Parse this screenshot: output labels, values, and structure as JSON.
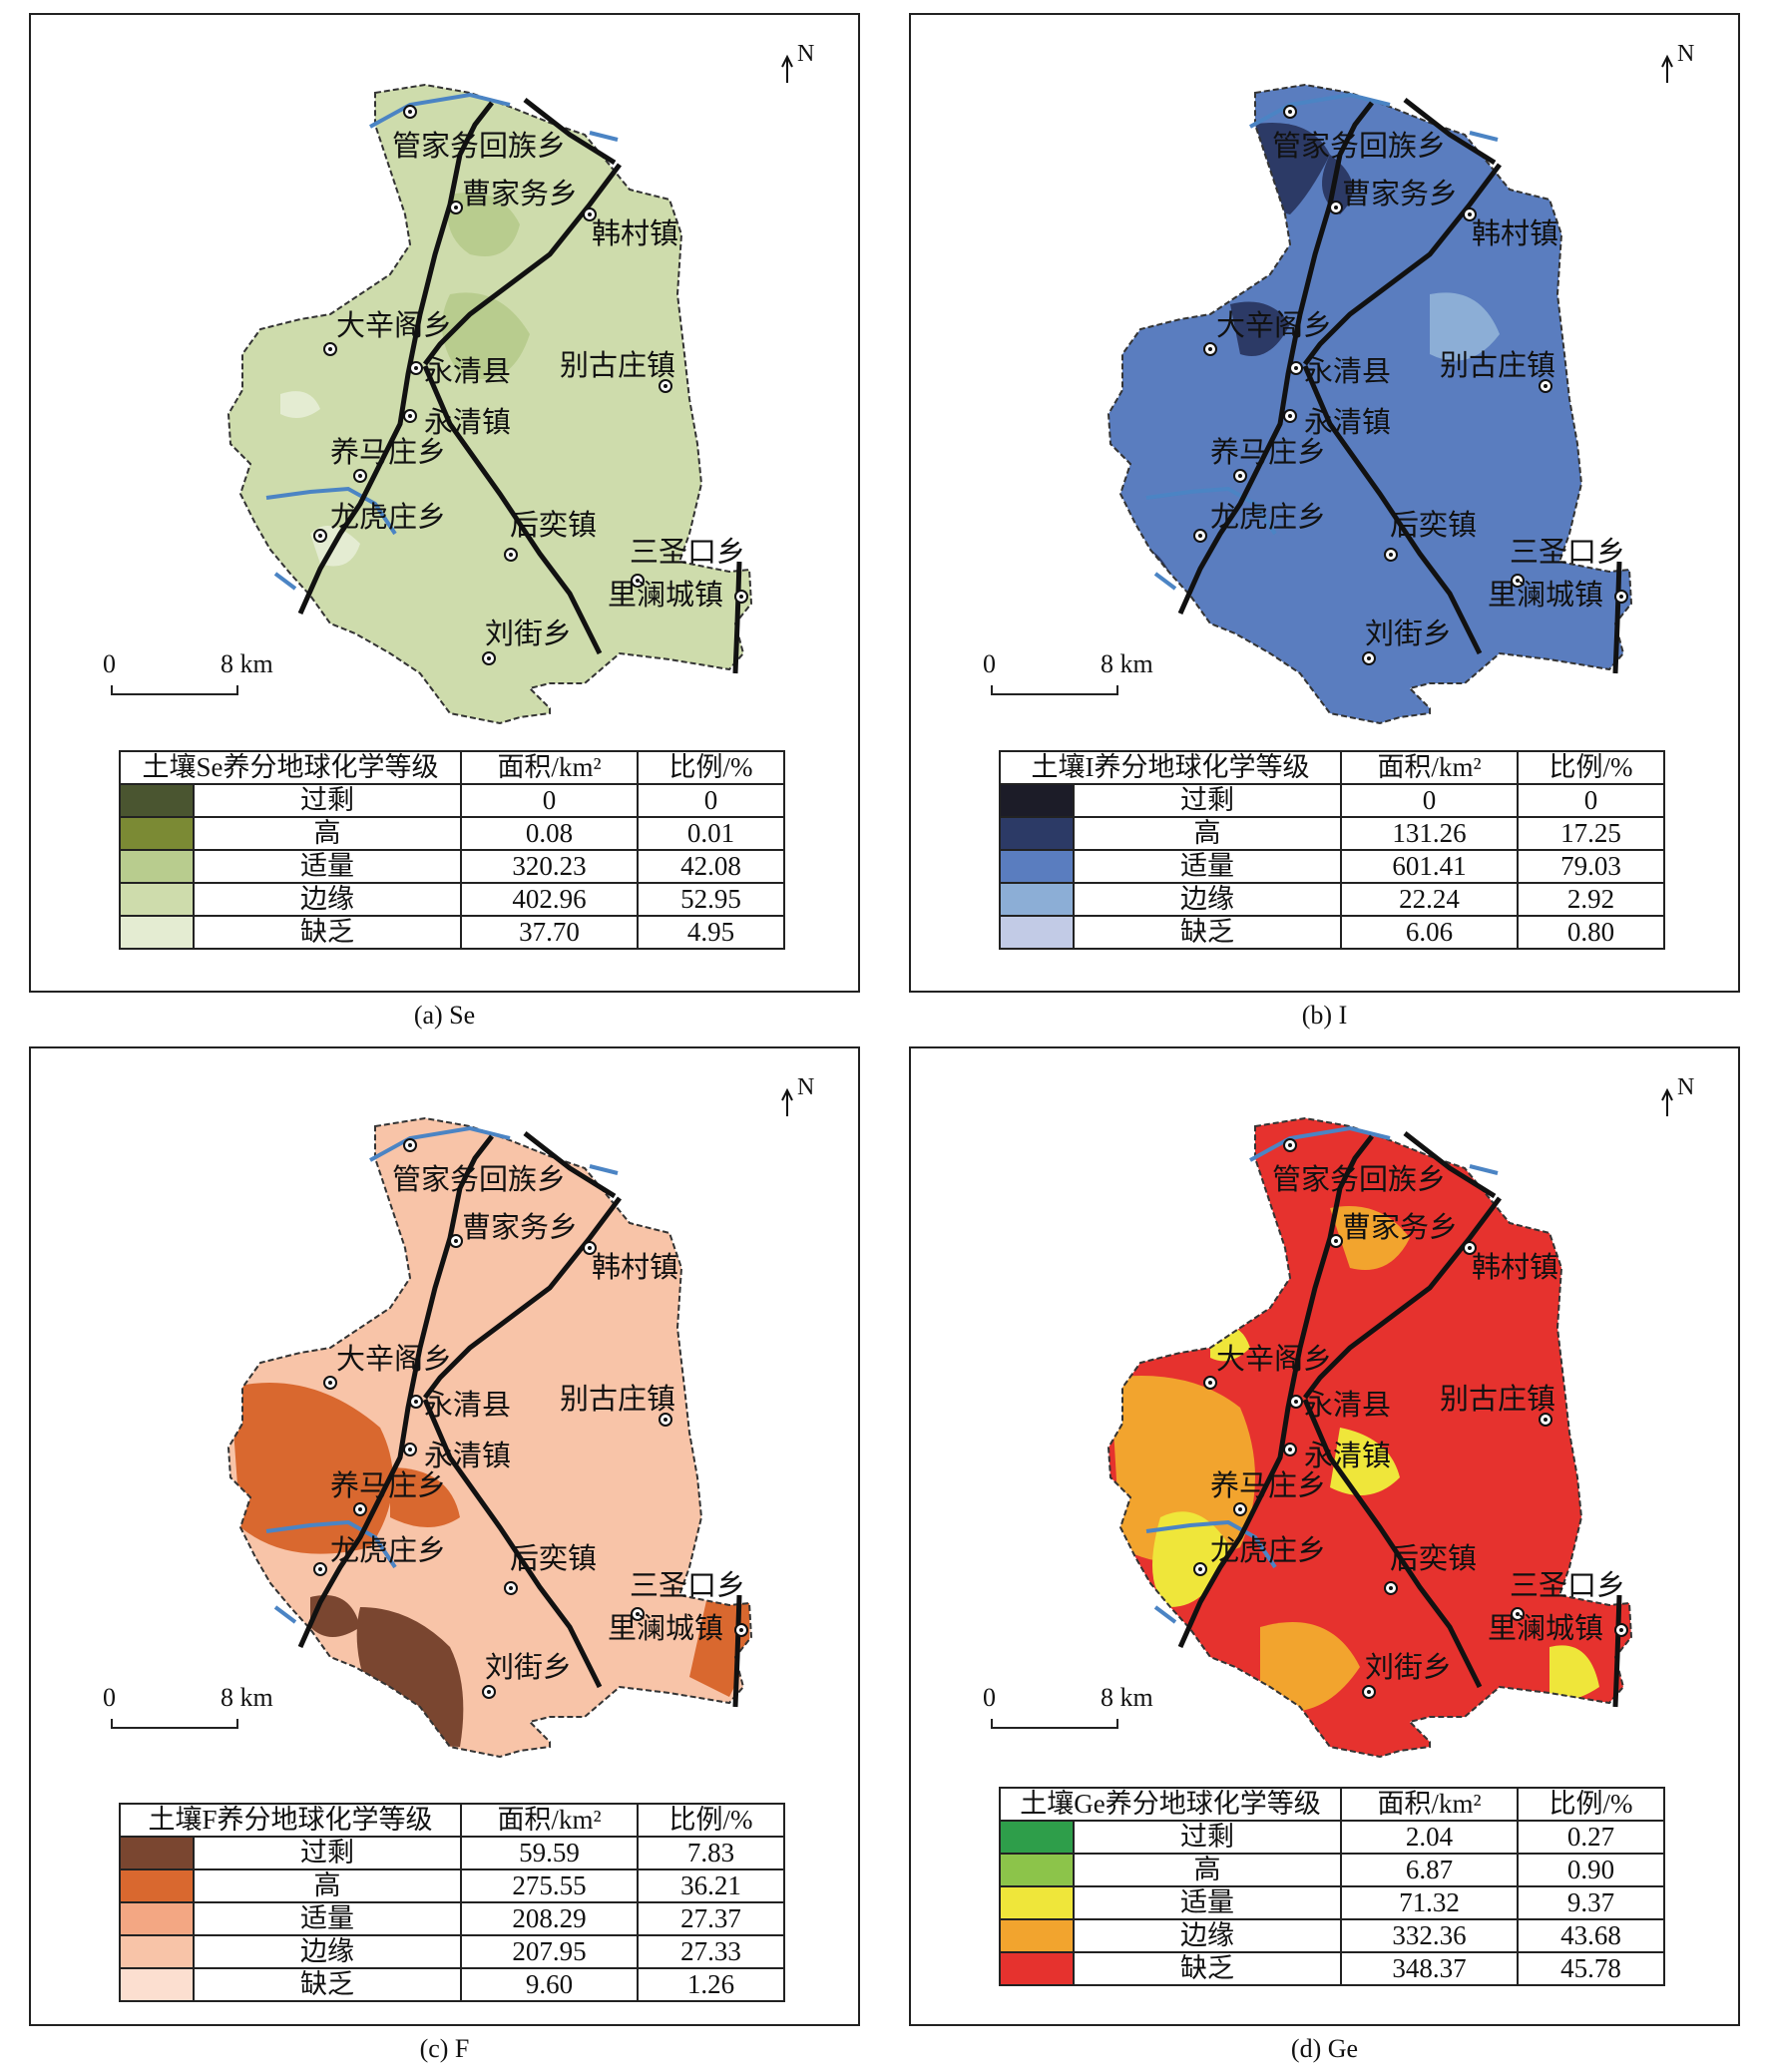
{
  "north_label": "N",
  "scale": {
    "zero": "0",
    "km": "8 km"
  },
  "place_names": [
    "管家务回族乡",
    "曹家务乡",
    "韩村镇",
    "大辛阁乡",
    "永清县",
    "别古庄镇",
    "永清镇",
    "养马庄乡",
    "龙虎庄乡",
    "后奕镇",
    "三圣口乡",
    "里澜城镇",
    "刘街乡"
  ],
  "table_headers": {
    "area": "面积/km²",
    "ratio": "比例/%"
  },
  "grade_labels": [
    "过剩",
    "高",
    "适量",
    "边缘",
    "缺乏"
  ],
  "panels": [
    {
      "caption": "(a) Se",
      "legend_title": "土壤Se养分地球化学等级",
      "colors": [
        "#4a5530",
        "#7b8a34",
        "#b8cc8e",
        "#cedcac",
        "#e4ecd2"
      ],
      "base_color": "#cedcac",
      "patch_colors": [
        "#b8cc8e",
        "#e4ecd2"
      ],
      "rows": [
        {
          "area": "0",
          "ratio": "0"
        },
        {
          "area": "0.08",
          "ratio": "0.01"
        },
        {
          "area": "320.23",
          "ratio": "42.08"
        },
        {
          "area": "402.96",
          "ratio": "52.95"
        },
        {
          "area": "37.70",
          "ratio": "4.95"
        }
      ]
    },
    {
      "caption": "(b) I",
      "legend_title": "土壤I养分地球化学等级",
      "colors": [
        "#1c1c28",
        "#2c3a66",
        "#5a7dbf",
        "#8caed6",
        "#c2cbe6"
      ],
      "base_color": "#5a7dbf",
      "patch_colors": [
        "#2c3a66",
        "#8caed6"
      ],
      "rows": [
        {
          "area": "0",
          "ratio": "0"
        },
        {
          "area": "131.26",
          "ratio": "17.25"
        },
        {
          "area": "601.41",
          "ratio": "79.03"
        },
        {
          "area": "22.24",
          "ratio": "2.92"
        },
        {
          "area": "6.06",
          "ratio": "0.80"
        }
      ]
    },
    {
      "caption": "(c) F",
      "legend_title": "土壤F养分地球化学等级",
      "colors": [
        "#7a4630",
        "#d9682f",
        "#f3a783",
        "#f8c4a8",
        "#fcdfd0"
      ],
      "base_color": "#f8c4a8",
      "patch_colors": [
        "#d9682f",
        "#7a4630"
      ],
      "rows": [
        {
          "area": "59.59",
          "ratio": "7.83"
        },
        {
          "area": "275.55",
          "ratio": "36.21"
        },
        {
          "area": "208.29",
          "ratio": "27.37"
        },
        {
          "area": "207.95",
          "ratio": "27.33"
        },
        {
          "area": "9.60",
          "ratio": "1.26"
        }
      ]
    },
    {
      "caption": "(d) Ge",
      "legend_title": "土壤Ge养分地球化学等级",
      "colors": [
        "#2e9e4a",
        "#8cc44a",
        "#efe63a",
        "#f2a42e",
        "#e6322e"
      ],
      "base_color": "#e6322e",
      "patch_colors": [
        "#f2a42e",
        "#efe63a"
      ],
      "rows": [
        {
          "area": "2.04",
          "ratio": "0.27"
        },
        {
          "area": "6.87",
          "ratio": "0.90"
        },
        {
          "area": "71.32",
          "ratio": "9.37"
        },
        {
          "area": "332.36",
          "ratio": "43.68"
        },
        {
          "area": "348.37",
          "ratio": "45.78"
        }
      ]
    }
  ]
}
